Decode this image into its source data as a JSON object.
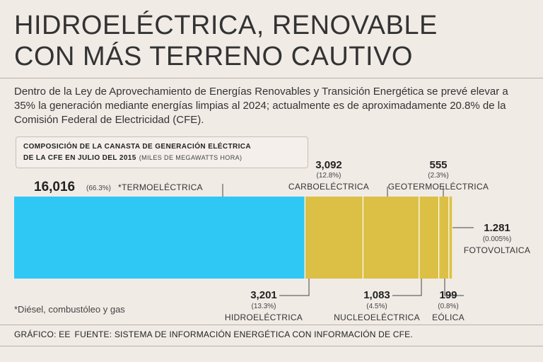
{
  "title": {
    "line1": "HIDROELÉCTRICA, RENOVABLE",
    "line2": "CON MÁS TERRENO CAUTIVO"
  },
  "intro": "Dentro de la Ley de Aprovechamiento de Energías Renovables y Transición Energética se prevé elevar a 35% la generación mediante energías limpias al 2024; actualmente es de aproximadamente 20.8% de la Comisión Federal de Electricidad (CFE).",
  "subtitle": {
    "line1": "COMPOSICIÓN DE LA CANASTA DE GENERACIÓN ELÉCTRICA",
    "line2": "DE LA CFE EN JULIO DEL 2015",
    "units": "(MILES DE MEGAWATTS HORA)"
  },
  "chart_data": {
    "type": "bar",
    "orientation": "horizontal-stacked",
    "title": "COMPOSICIÓN DE LA CANASTA DE GENERACIÓN ELÉCTRICA DE LA CFE EN JULIO DEL 2015",
    "units": "MILES DE MEGAWATTS HORA",
    "series": [
      {
        "name": "*TERMOELÉCTRICA",
        "value": 16016,
        "label": "16,016",
        "pct": "(66.3%)",
        "color": "#2fc8f5",
        "label_pos": "top-left"
      },
      {
        "name": "HIDROELÉCTRICA",
        "value": 3201,
        "label": "3,201",
        "pct": "(13.3%)",
        "color": "#dcc046",
        "label_pos": "bottom"
      },
      {
        "name": "CARBOELÉCTRICA",
        "value": 3092,
        "label": "3,092",
        "pct": "(12.8%)",
        "color": "#dcc046",
        "label_pos": "top"
      },
      {
        "name": "NUCLEOELÉCTRICA",
        "value": 1083,
        "label": "1,083",
        "pct": "(4.5%)",
        "color": "#dcc046",
        "label_pos": "bottom"
      },
      {
        "name": "GEOTERMOELÉCTRICA",
        "value": 555,
        "label": "555",
        "pct": "(2.3%)",
        "color": "#dcc046",
        "label_pos": "top"
      },
      {
        "name": "EÓLICA",
        "value": 199,
        "label": "199",
        "pct": "(0.8%)",
        "color": "#dcc046",
        "label_pos": "bottom"
      },
      {
        "name": "FOTOVOLTAICA",
        "value": 1.281,
        "label": "1.281",
        "pct": "(0.005%)",
        "color": "#dcc046",
        "label_pos": "right"
      }
    ]
  },
  "footnote": "*Diésel, combustóleo y gas",
  "footer": {
    "credit": "GRÁFICO: EE",
    "source": "FUENTE: SISTEMA DE INFORMACIÓN ENERGÉTICA CON INFORMACIÓN DE CFE."
  }
}
